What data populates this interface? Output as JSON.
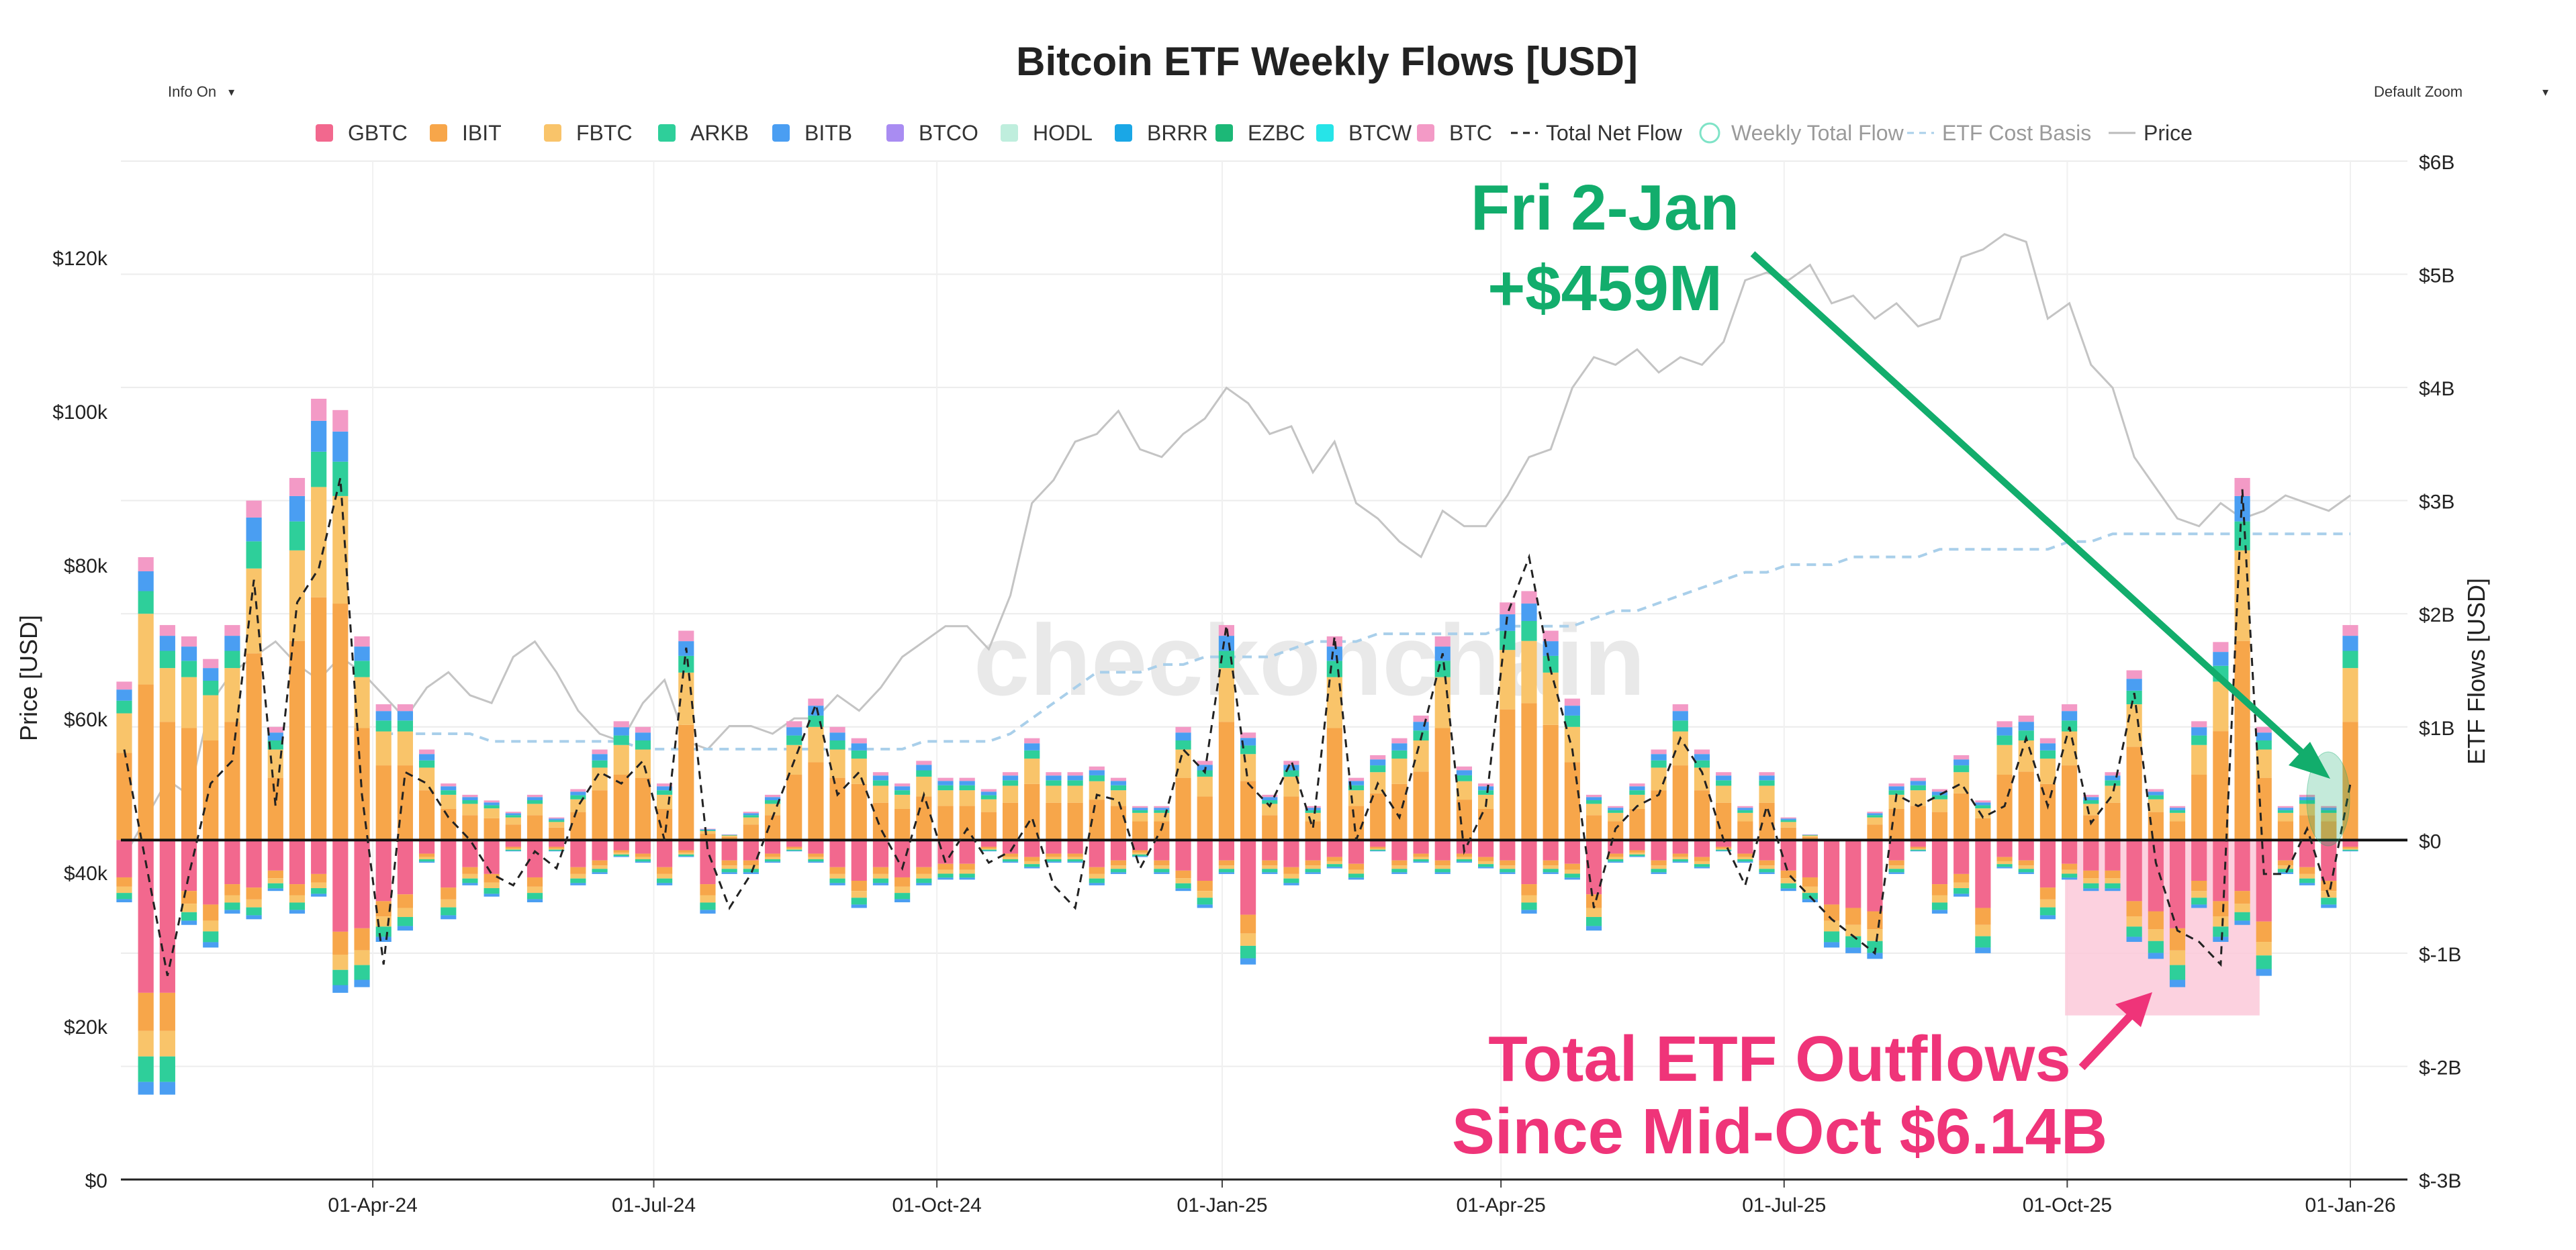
{
  "controls": {
    "info_label": "Info On",
    "zoom_label": "Default Zoom",
    "dropdown_glyph": "▾"
  },
  "watermark": "checkonchain",
  "colors": {
    "GBTC": "#f2688e",
    "IBIT": "#f7a64a",
    "FBTC": "#f9c46a",
    "ARKB": "#2ecf9a",
    "BITB": "#4a9ef2",
    "BTCO": "#a98cf2",
    "HODL": "#bfeedd",
    "BRRR": "#1aa7e6",
    "EZBC": "#1cb877",
    "BTCW": "#26e4e8",
    "BTC": "#f39ac6",
    "net_flow": "#222222",
    "cost_basis": "#a9cfea",
    "price": "#c4c4c4",
    "green_annotation": "#12ad6c",
    "pink_annotation": "#ef3479",
    "outflow_box": "#fbc9d9"
  },
  "chart_data": {
    "type": "bar",
    "title": "Bitcoin ETF Weekly Flows [USD]",
    "ylabel_left": "Price [USD]",
    "ylabel_right": "ETF Flows [USD]",
    "left_ylim": [
      0,
      132500
    ],
    "right_ylim": [
      -3000000000,
      6000000000
    ],
    "left_ticks": [
      "$0",
      "$20k",
      "$40k",
      "$60k",
      "$80k",
      "$100k",
      "$120k"
    ],
    "left_tick_values": [
      0,
      20000,
      40000,
      60000,
      80000,
      100000,
      120000
    ],
    "right_ticks": [
      "$-3B",
      "$-2B",
      "$-1B",
      "$0",
      "$1B",
      "$2B",
      "$3B",
      "$4B",
      "$5B",
      "$6B"
    ],
    "right_tick_values": [
      -3,
      -2,
      -1,
      0,
      1,
      2,
      3,
      4,
      5,
      6
    ],
    "x_ticks": [
      "01-Apr-24",
      "01-Jul-24",
      "01-Oct-24",
      "01-Jan-25",
      "01-Apr-25",
      "01-Jul-25",
      "01-Oct-25",
      "01-Jan-26"
    ],
    "x_tick_weeks": [
      11.5,
      24.5,
      37.6,
      50.8,
      63.7,
      76.8,
      89.9,
      103.0
    ],
    "week_count": 104,
    "grid": true,
    "legend_position": "top",
    "legend": [
      "GBTC",
      "IBIT",
      "FBTC",
      "ARKB",
      "BITB",
      "BTCO",
      "HODL",
      "BRRR",
      "EZBC",
      "BTCW",
      "BTC",
      "Total Net Flow",
      "Weekly Total Flow",
      "ETF Cost Basis",
      "Price"
    ],
    "weekly_inflow_top_B": [
      1.4,
      2.5,
      1.9,
      1.8,
      1.6,
      1.9,
      3.0,
      1.0,
      3.2,
      3.9,
      3.8,
      1.8,
      1.2,
      1.2,
      0.8,
      0.5,
      0.4,
      0.35,
      0.25,
      0.4,
      0.2,
      0.45,
      0.8,
      1.05,
      1.0,
      0.5,
      1.85,
      0.1,
      0.05,
      0.25,
      0.4,
      1.05,
      1.25,
      1.0,
      0.9,
      0.6,
      0.5,
      0.7,
      0.55,
      0.55,
      0.45,
      0.6,
      0.9,
      0.6,
      0.6,
      0.65,
      0.55,
      0.3,
      0.3,
      1.0,
      0.7,
      1.9,
      0.95,
      0.4,
      0.7,
      0.3,
      1.8,
      0.55,
      0.75,
      0.9,
      1.1,
      1.8,
      0.65,
      0.5,
      2.1,
      2.2,
      1.85,
      1.25,
      0.4,
      0.3,
      0.5,
      0.8,
      1.2,
      0.8,
      0.6,
      0.3,
      0.6,
      0.2,
      0.05,
      0.0,
      0.0,
      0.25,
      0.5,
      0.55,
      0.45,
      0.75,
      0.35,
      1.05,
      1.1,
      0.9,
      1.2,
      0.4,
      0.6,
      1.5,
      0.45,
      0.3,
      1.05,
      1.75,
      3.2,
      1.0,
      0.3,
      0.4,
      0.3,
      1.9
    ],
    "weekly_outflow_bottom_B": [
      -0.55,
      -2.25,
      -2.25,
      -0.75,
      -0.95,
      -0.65,
      -0.7,
      -0.45,
      -0.65,
      -0.5,
      -1.35,
      -1.3,
      -0.9,
      -0.8,
      -0.2,
      -0.7,
      -0.4,
      -0.5,
      -0.1,
      -0.55,
      -0.1,
      -0.4,
      -0.3,
      -0.15,
      -0.2,
      -0.4,
      -0.15,
      -0.65,
      -0.3,
      -0.3,
      -0.2,
      -0.1,
      -0.2,
      -0.4,
      -0.6,
      -0.4,
      -0.55,
      -0.4,
      -0.35,
      -0.35,
      -0.1,
      -0.2,
      -0.25,
      -0.2,
      -0.2,
      -0.4,
      -0.3,
      -0.15,
      -0.3,
      -0.45,
      -0.6,
      -0.3,
      -1.1,
      -0.3,
      -0.4,
      -0.3,
      -0.25,
      -0.35,
      -0.1,
      -0.3,
      -0.2,
      -0.3,
      -0.2,
      -0.25,
      -0.3,
      -0.65,
      -0.3,
      -0.35,
      -0.8,
      -0.2,
      -0.15,
      -0.3,
      -0.2,
      -0.25,
      -0.1,
      -0.2,
      -0.3,
      -0.45,
      -0.55,
      -0.95,
      -1.0,
      -1.05,
      -0.3,
      -0.1,
      -0.65,
      -0.5,
      -1.0,
      -0.25,
      -0.3,
      -0.7,
      -0.35,
      -0.45,
      -0.45,
      -0.9,
      -1.05,
      -1.3,
      -0.6,
      -0.9,
      -0.75,
      -1.2,
      -0.3,
      -0.4,
      -0.6,
      -0.1
    ],
    "weekly_net_flow_B": [
      0.8,
      -0.2,
      -1.2,
      -0.3,
      0.5,
      0.7,
      2.3,
      0.3,
      2.1,
      2.4,
      3.2,
      0.4,
      -1.1,
      0.6,
      0.5,
      0.2,
      0.0,
      -0.3,
      -0.4,
      -0.1,
      -0.25,
      0.3,
      0.6,
      0.5,
      0.7,
      0.0,
      1.7,
      -0.1,
      -0.6,
      -0.3,
      0.2,
      0.7,
      1.2,
      0.4,
      0.6,
      0.1,
      -0.25,
      0.4,
      -0.2,
      0.1,
      -0.2,
      -0.1,
      0.2,
      -0.4,
      -0.6,
      0.4,
      0.35,
      -0.25,
      0.1,
      0.8,
      0.6,
      1.9,
      0.5,
      0.3,
      0.7,
      0.1,
      1.8,
      0.0,
      0.5,
      0.2,
      0.9,
      1.65,
      -0.1,
      0.3,
      2.0,
      2.5,
      1.5,
      0.8,
      -0.6,
      0.1,
      0.3,
      0.4,
      0.9,
      0.6,
      0.0,
      -0.4,
      0.3,
      -0.3,
      -0.5,
      -0.7,
      -0.85,
      -1.0,
      0.4,
      0.3,
      0.4,
      0.5,
      0.2,
      0.3,
      0.9,
      0.3,
      1.0,
      0.15,
      0.4,
      1.3,
      -0.2,
      -0.8,
      -0.9,
      -1.1,
      3.1,
      -0.3,
      -0.3,
      0.1,
      -0.5,
      0.5
    ],
    "price_k": [
      42,
      47,
      52,
      50,
      62,
      66,
      68,
      70,
      67,
      65,
      68,
      66,
      63,
      60,
      64,
      66,
      63,
      62,
      68,
      70,
      66,
      61,
      58,
      57,
      62,
      65,
      57,
      56,
      59,
      59,
      58,
      60,
      60,
      63,
      61,
      64,
      68,
      70,
      72,
      72,
      69,
      76,
      88,
      91,
      96,
      97,
      100,
      95,
      94,
      97,
      99,
      103,
      101,
      97,
      98,
      92,
      96,
      88,
      86,
      83,
      81,
      87,
      85,
      85,
      89,
      94,
      95,
      103,
      107,
      106,
      108,
      105,
      107,
      106,
      109,
      117,
      118,
      117,
      119,
      114,
      115,
      112,
      114,
      111,
      112,
      120,
      121,
      123,
      122,
      112,
      114,
      106,
      103,
      94,
      90,
      86,
      85,
      88,
      86,
      87,
      89,
      88,
      87,
      89
    ],
    "cost_basis_k": [
      null,
      null,
      null,
      null,
      null,
      null,
      null,
      null,
      null,
      null,
      null,
      null,
      58,
      58,
      58,
      58,
      58,
      57,
      57,
      57,
      57,
      57,
      57,
      57,
      56,
      56,
      56,
      56,
      56,
      56,
      56,
      56,
      56,
      56,
      56,
      56,
      56,
      57,
      57,
      57,
      57,
      58,
      60,
      62,
      64,
      66,
      66,
      66,
      67,
      67,
      68,
      68,
      68,
      68,
      69,
      70,
      70,
      70,
      71,
      71,
      71,
      71,
      71,
      71,
      72,
      72,
      72,
      72,
      73,
      74,
      74,
      75,
      76,
      77,
      78,
      79,
      79,
      80,
      80,
      80,
      81,
      81,
      81,
      81,
      82,
      82,
      82,
      82,
      82,
      82,
      83,
      83,
      84,
      84,
      84,
      84,
      84,
      84,
      84,
      84,
      84,
      84,
      84,
      84
    ],
    "annotations": {
      "latest_week": {
        "line1": "Fri 2-Jan",
        "line2": "+$459M"
      },
      "outflows": {
        "line1": "Total ETF Outflows",
        "line2": "Since Mid-Oct $6.14B",
        "start_week": 89.8,
        "end_week": 98.8,
        "bottom_B": -1.55
      }
    }
  }
}
